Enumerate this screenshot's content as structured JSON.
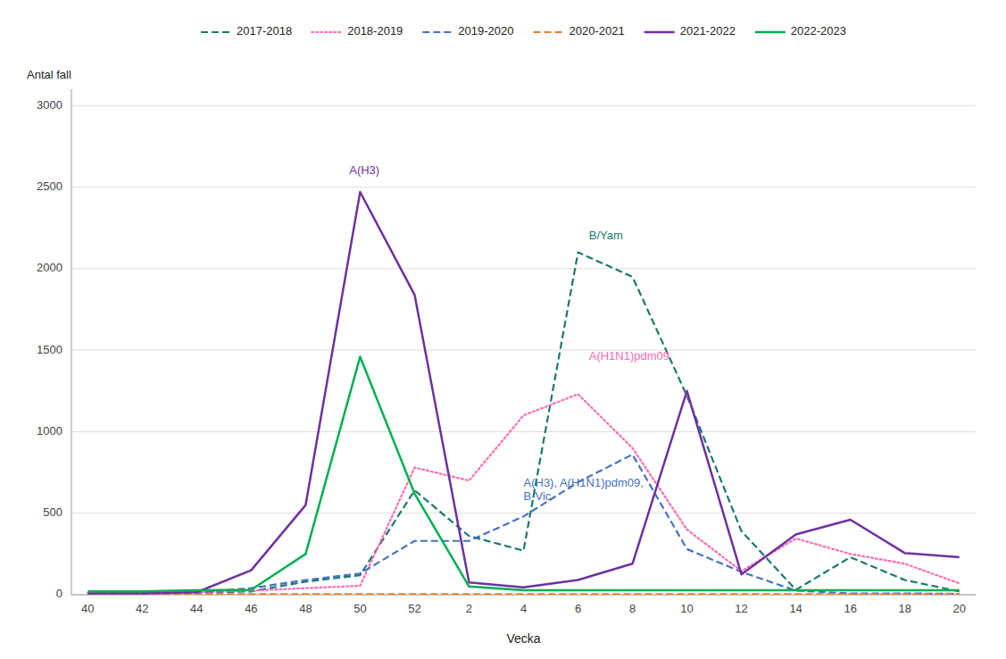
{
  "chart_data": {
    "type": "line",
    "xlabel": "Vecka",
    "ylabel": "Antal fall",
    "categories": [
      "40",
      "42",
      "44",
      "46",
      "48",
      "50",
      "52",
      "2",
      "4",
      "6",
      "8",
      "10",
      "12",
      "14",
      "16",
      "18",
      "20"
    ],
    "ylim": [
      0,
      3100
    ],
    "yticks": [
      0,
      500,
      1000,
      1500,
      2000,
      2500,
      3000
    ],
    "grid": true,
    "legend": "top",
    "series": [
      {
        "name": "2017-2018",
        "color": "#1a7874",
        "line_style": "dashed",
        "values": [
          10,
          10,
          12,
          20,
          80,
          120,
          640,
          360,
          270,
          2100,
          1950,
          1220,
          390,
          30,
          230,
          90,
          20
        ]
      },
      {
        "name": "2018-2019",
        "color": "#ff69b4",
        "line_style": "dotted",
        "values": [
          10,
          10,
          15,
          25,
          40,
          55,
          780,
          700,
          1100,
          1230,
          900,
          400,
          145,
          345,
          250,
          190,
          70
        ]
      },
      {
        "name": "2019-2020",
        "color": "#4472c4",
        "line_style": "dashed",
        "values": [
          5,
          5,
          15,
          40,
          90,
          130,
          330,
          330,
          480,
          690,
          860,
          280,
          140,
          25,
          8,
          8,
          5
        ]
      },
      {
        "name": "2020-2021",
        "color": "#ed7d31",
        "line_style": "dashed",
        "values": [
          3,
          3,
          3,
          3,
          3,
          3,
          3,
          3,
          3,
          3,
          3,
          3,
          3,
          3,
          3,
          3,
          3
        ]
      },
      {
        "name": "2021-2022",
        "color": "#7030a0",
        "line_style": "solid",
        "values": [
          8,
          8,
          15,
          150,
          550,
          2470,
          1840,
          75,
          45,
          90,
          190,
          1250,
          125,
          370,
          460,
          255,
          230
        ]
      },
      {
        "name": "2022-2023",
        "color": "#00b050",
        "line_style": "solid",
        "values": [
          20,
          20,
          28,
          30,
          250,
          1460,
          620,
          50,
          28,
          28,
          28,
          28,
          28,
          28,
          28,
          28,
          28
        ]
      }
    ],
    "annotations": [
      {
        "text": "A(H3)",
        "x": 4.8,
        "y": 2560,
        "color": "#7030a0"
      },
      {
        "text": "B/Yam",
        "x": 9.2,
        "y": 2160,
        "color": "#1a7874"
      },
      {
        "text": "A(H1N1)pdm09",
        "x": 9.2,
        "y": 1420,
        "color": "#ff69b4"
      },
      {
        "text": "A(H3), A(H1N1)pdm09,\nB-Vic",
        "x": 8.0,
        "y": 560,
        "color": "#4472c4"
      }
    ]
  }
}
